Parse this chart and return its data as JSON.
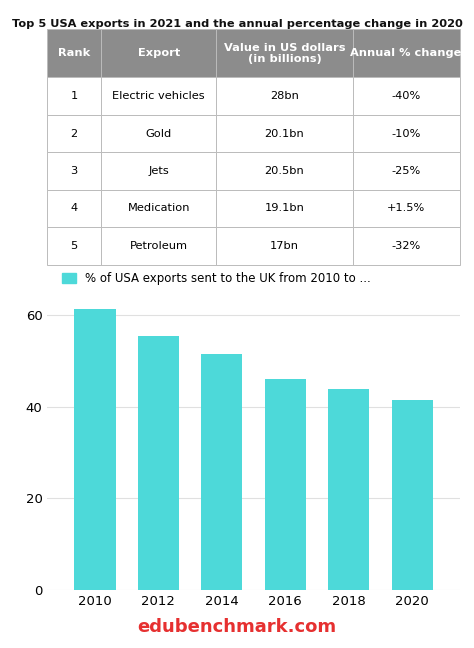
{
  "title": "Top 5 USA exports in 2021 and the annual percentage change in 2020",
  "table_headers": [
    "Rank",
    "Export",
    "Value in US dollars\n(in billions)",
    "Annual % change"
  ],
  "table_rows": [
    [
      "1",
      "Electric vehicles",
      "28bn",
      "-40%"
    ],
    [
      "2",
      "Gold",
      "20.1bn",
      "-10%"
    ],
    [
      "3",
      "Jets",
      "20.5bn",
      "-25%"
    ],
    [
      "4",
      "Medication",
      "19.1bn",
      "+1.5%"
    ],
    [
      "5",
      "Petroleum",
      "17bn",
      "-32%"
    ]
  ],
  "header_bg": "#8c8c8c",
  "header_text": "#ffffff",
  "row_bg": "#ffffff",
  "row_text": "#000000",
  "grid_color": "#bbbbbb",
  "bar_years": [
    2010,
    2012,
    2014,
    2016,
    2018,
    2020
  ],
  "bar_values": [
    61.5,
    55.5,
    51.5,
    46.0,
    44.0,
    41.5
  ],
  "bar_color": "#4dd9d9",
  "bar_legend_label": "% of USA exports sent to the UK from 2010 to ...",
  "bar_legend_color": "#4dd9d9",
  "ylim": [
    0,
    65
  ],
  "yticks": [
    0,
    20,
    40,
    60
  ],
  "footer_text": "edubenchmark.com",
  "footer_color": "#e63030",
  "bg_color": "#ffffff"
}
